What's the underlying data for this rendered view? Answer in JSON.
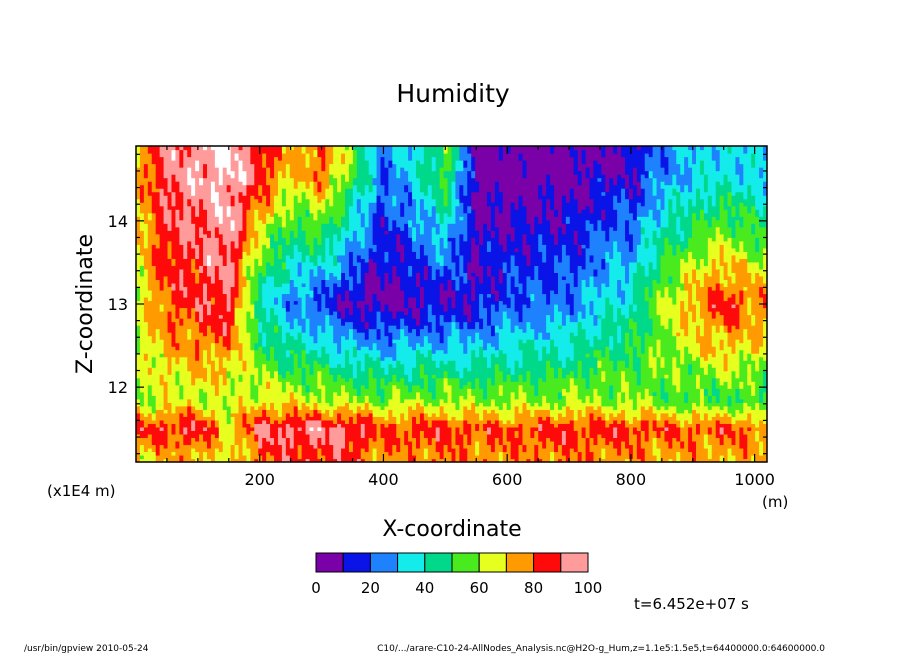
{
  "chart_data": {
    "type": "heatmap",
    "title": "Humidity",
    "xlabel": "X-coordinate",
    "ylabel": "Z-coordinate",
    "x_unit": "(m)",
    "y_unit": "(x1E4 m)",
    "xlim": [
      0,
      1020
    ],
    "ylim": [
      11.1,
      14.9
    ],
    "x_ticks": [
      200,
      400,
      600,
      800,
      1000
    ],
    "y_ticks": [
      12,
      13,
      14
    ],
    "colorbar": {
      "levels": [
        0,
        10,
        20,
        30,
        40,
        50,
        60,
        70,
        80,
        90,
        100
      ],
      "tick_labels": [
        "0",
        "20",
        "40",
        "60",
        "80",
        "100"
      ],
      "colors": [
        "#7a00a8",
        "#0a14e6",
        "#1e82ff",
        "#14ebeb",
        "#00d98a",
        "#4aeb1e",
        "#e6ff1e",
        "#ff9b00",
        "#ff0a0a",
        "#ff9b9b"
      ],
      "over_color": "#ffffff"
    },
    "profiles": [
      {
        "x": 0,
        "surface": 68,
        "bottom": 84,
        "floor": 58,
        "upper": 62,
        "top": 70
      },
      {
        "x": 50,
        "surface": 72,
        "bottom": 86,
        "floor": 62,
        "upper": 82,
        "top": 92
      },
      {
        "x": 100,
        "surface": 75,
        "bottom": 88,
        "floor": 65,
        "upper": 85,
        "top": 96
      },
      {
        "x": 150,
        "surface": 62,
        "bottom": 70,
        "floor": 60,
        "upper": 90,
        "top": 102
      },
      {
        "x": 200,
        "surface": 82,
        "bottom": 90,
        "floor": 66,
        "upper": 40,
        "top": 88
      },
      {
        "x": 250,
        "surface": 85,
        "bottom": 92,
        "floor": 65,
        "upper": 25,
        "top": 70
      },
      {
        "x": 300,
        "surface": 85,
        "bottom": 93,
        "floor": 63,
        "upper": 18,
        "top": 80
      },
      {
        "x": 350,
        "surface": 84,
        "bottom": 92,
        "floor": 60,
        "upper": 8,
        "top": 55
      },
      {
        "x": 400,
        "surface": 72,
        "bottom": 82,
        "floor": 58,
        "upper": 5,
        "top": 22
      },
      {
        "x": 450,
        "surface": 78,
        "bottom": 84,
        "floor": 60,
        "upper": 8,
        "top": 35
      },
      {
        "x": 500,
        "surface": 78,
        "bottom": 84,
        "floor": 60,
        "upper": 10,
        "top": 55
      },
      {
        "x": 550,
        "surface": 76,
        "bottom": 82,
        "floor": 58,
        "upper": 12,
        "top": 5
      },
      {
        "x": 600,
        "surface": 76,
        "bottom": 82,
        "floor": 58,
        "upper": 20,
        "top": 4
      },
      {
        "x": 650,
        "surface": 78,
        "bottom": 84,
        "floor": 58,
        "upper": 22,
        "top": 4
      },
      {
        "x": 700,
        "surface": 78,
        "bottom": 85,
        "floor": 60,
        "upper": 24,
        "top": 5
      },
      {
        "x": 750,
        "surface": 78,
        "bottom": 84,
        "floor": 60,
        "upper": 35,
        "top": 8
      },
      {
        "x": 800,
        "surface": 76,
        "bottom": 84,
        "floor": 58,
        "upper": 40,
        "top": 10
      },
      {
        "x": 850,
        "surface": 74,
        "bottom": 82,
        "floor": 55,
        "upper": 60,
        "top": 25
      },
      {
        "x": 900,
        "surface": 74,
        "bottom": 82,
        "floor": 52,
        "upper": 75,
        "top": 30
      },
      {
        "x": 950,
        "surface": 74,
        "bottom": 82,
        "floor": 52,
        "upper": 86,
        "top": 35
      },
      {
        "x": 1020,
        "surface": 72,
        "bottom": 80,
        "floor": 50,
        "upper": 75,
        "top": 30
      }
    ],
    "profile_heights": {
      "surface": 11.18,
      "bottom": 11.5,
      "floor": 11.85,
      "upper": 13.0,
      "top": 14.6
    }
  },
  "annotations": {
    "time": "t=6.452e+07 s",
    "footer_left": "/usr/bin/gpview  2010-05-24",
    "footer_right": "C10/.../arare-C10-24-AllNodes_Analysis.nc@H2O-g_Hum,z=1.1e5:1.5e5,t=64400000.0:64600000.0"
  }
}
